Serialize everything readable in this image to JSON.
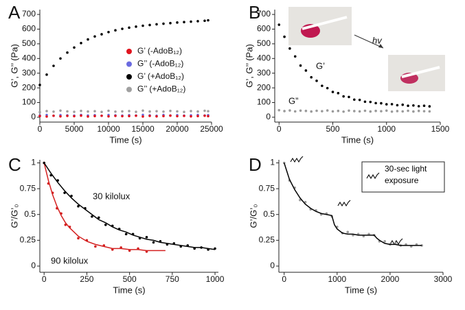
{
  "chart_data": [
    {
      "panel": "A",
      "type": "scatter",
      "xlabel": "Time (s)",
      "ylabel": "G’, G’’ (Pa)",
      "xlim": [
        0,
        25000
      ],
      "ylim": [
        -33,
        733
      ],
      "xticks": [
        0,
        5000,
        10000,
        15000,
        20000,
        25000
      ],
      "yticks": [
        0,
        100,
        200,
        300,
        400,
        500,
        600,
        700
      ],
      "x": [
        0,
        1000,
        2000,
        3000,
        4000,
        5000,
        6000,
        7000,
        8000,
        9000,
        10000,
        11000,
        12000,
        13000,
        14000,
        15000,
        16000,
        17000,
        18000,
        19000,
        20000,
        21000,
        22000,
        23000,
        24000,
        24500
      ],
      "series": [
        {
          "name": "G’ (-AdoB₁₂)",
          "color": "#e0141e",
          "values": [
            8,
            5,
            10,
            6,
            9,
            7,
            11,
            5,
            8,
            10,
            6,
            9,
            7,
            8,
            10,
            5,
            9,
            6,
            8,
            11,
            7,
            9,
            6,
            8,
            10,
            7
          ]
        },
        {
          "name": "G’’ (-AdoB₁₂)",
          "color": "#6a6ae0",
          "values": [
            12,
            15,
            10,
            14,
            13,
            11,
            16,
            12,
            14,
            10,
            15,
            13,
            11,
            14,
            12,
            16,
            13,
            10,
            15,
            12,
            14,
            11,
            13,
            15,
            12,
            14
          ]
        },
        {
          "name": "G’ (+AdoB₁₂)",
          "color": "#000000",
          "values": [
            220,
            290,
            350,
            400,
            440,
            475,
            505,
            530,
            550,
            565,
            580,
            592,
            602,
            610,
            617,
            623,
            628,
            633,
            637,
            641,
            645,
            648,
            651,
            654,
            657,
            660
          ]
        },
        {
          "name": "G’’ (+AdoB₁₂)",
          "color": "#a0a0a0",
          "values": [
            35,
            42,
            38,
            45,
            40,
            37,
            43,
            39,
            41,
            36,
            44,
            38,
            40,
            42,
            37,
            45,
            39,
            41,
            38,
            43,
            40,
            36,
            42,
            39,
            44,
            41
          ]
        }
      ]
    },
    {
      "panel": "B",
      "type": "scatter",
      "xlabel": "Time (s)",
      "ylabel": "G’, G’’ (Pa)",
      "annotation": "hv",
      "xlim": [
        -40,
        1500
      ],
      "ylim": [
        -33,
        733
      ],
      "xticks": [
        0,
        500,
        1000,
        1500
      ],
      "yticks": [
        0,
        100,
        200,
        300,
        400,
        500,
        600,
        700
      ],
      "x": [
        0,
        50,
        100,
        150,
        200,
        250,
        300,
        350,
        400,
        450,
        500,
        550,
        600,
        650,
        700,
        750,
        800,
        850,
        900,
        950,
        1000,
        1050,
        1100,
        1150,
        1200,
        1250,
        1300,
        1350,
        1400
      ],
      "series": [
        {
          "name": "G’",
          "color": "#000000",
          "values": [
            630,
            548,
            468,
            414,
            352,
            318,
            272,
            248,
            214,
            198,
            172,
            164,
            142,
            138,
            120,
            118,
            106,
            104,
            96,
            95,
            88,
            89,
            82,
            85,
            78,
            80,
            75,
            78,
            74
          ]
        },
        {
          "name": "G”",
          "color": "#9a9a9a",
          "values": [
            48,
            42,
            46,
            40,
            45,
            43,
            39,
            44,
            41,
            46,
            40,
            43,
            38,
            45,
            42,
            40,
            44,
            39,
            43,
            41,
            45,
            38,
            42,
            40,
            44,
            39,
            43,
            41,
            40
          ]
        }
      ]
    },
    {
      "panel": "C",
      "type": "scatter",
      "xlabel": "Time (s)",
      "ylabel": "G’/G’₀",
      "xlim": [
        -25,
        1020
      ],
      "ylim": [
        -0.06,
        1.03
      ],
      "xticks": [
        0,
        250,
        500,
        750,
        1000
      ],
      "yticks": [
        0,
        0.25,
        0.5,
        0.75,
        1
      ],
      "series": [
        {
          "name": "30 kilolux",
          "color": "#000000",
          "x": [
            0,
            40,
            80,
            120,
            160,
            200,
            240,
            280,
            320,
            360,
            400,
            440,
            480,
            520,
            560,
            600,
            640,
            680,
            720,
            760,
            800,
            840,
            880,
            920,
            960,
            1000
          ],
          "values": [
            1.0,
            0.88,
            0.83,
            0.71,
            0.68,
            0.58,
            0.56,
            0.48,
            0.47,
            0.4,
            0.39,
            0.36,
            0.31,
            0.31,
            0.27,
            0.28,
            0.23,
            0.24,
            0.21,
            0.22,
            0.19,
            0.2,
            0.17,
            0.18,
            0.16,
            0.17
          ],
          "fit_x": [
            0,
            40,
            80,
            120,
            160,
            200,
            240,
            280,
            320,
            360,
            400,
            440,
            480,
            520,
            560,
            600,
            640,
            680,
            720,
            760,
            800,
            840,
            880,
            920,
            960,
            1000
          ],
          "fit_values": [
            1.0,
            0.9,
            0.81,
            0.73,
            0.66,
            0.6,
            0.55,
            0.5,
            0.45,
            0.42,
            0.38,
            0.35,
            0.33,
            0.3,
            0.28,
            0.26,
            0.25,
            0.23,
            0.22,
            0.21,
            0.2,
            0.19,
            0.18,
            0.18,
            0.17,
            0.16
          ]
        },
        {
          "name": "90 kilolux",
          "color": "#d42020",
          "x": [
            0,
            25,
            50,
            75,
            100,
            125,
            150,
            200,
            250,
            300,
            350,
            400,
            450,
            500,
            550,
            600
          ],
          "values": [
            1.0,
            0.8,
            0.71,
            0.56,
            0.51,
            0.4,
            0.38,
            0.27,
            0.25,
            0.19,
            0.2,
            0.16,
            0.18,
            0.15,
            0.17,
            0.14
          ],
          "fit_x": [
            0,
            25,
            50,
            75,
            100,
            125,
            150,
            200,
            250,
            300,
            350,
            400,
            450,
            500,
            550,
            600,
            650,
            710
          ],
          "fit_values": [
            1.0,
            0.83,
            0.69,
            0.58,
            0.49,
            0.42,
            0.37,
            0.29,
            0.24,
            0.21,
            0.19,
            0.17,
            0.17,
            0.16,
            0.16,
            0.15,
            0.15,
            0.15
          ]
        }
      ]
    },
    {
      "panel": "D",
      "type": "scatter",
      "xlabel": "Time (s)",
      "ylabel": "G’/G’₀",
      "legend_label": "30-sec light exposure",
      "xlim": [
        -100,
        3000
      ],
      "ylim": [
        -0.06,
        1.03
      ],
      "xticks": [
        0,
        1000,
        2000,
        3000
      ],
      "yticks": [
        0,
        0.25,
        0.5,
        0.75,
        1
      ],
      "series": [
        {
          "color": "#9a9a9a",
          "fit_color": "#000000",
          "x": [
            0,
            100,
            200,
            300,
            400,
            500,
            600,
            700,
            800,
            900,
            1000,
            1100,
            1200,
            1300,
            1400,
            1500,
            1600,
            1700,
            1800,
            1900,
            2000,
            2100,
            2200,
            2300,
            2400,
            2500,
            2600
          ],
          "values": [
            1.0,
            0.83,
            0.76,
            0.64,
            0.62,
            0.55,
            0.54,
            0.5,
            0.51,
            0.48,
            0.38,
            0.32,
            0.33,
            0.3,
            0.31,
            0.29,
            0.31,
            0.3,
            0.24,
            0.24,
            0.21,
            0.22,
            0.2,
            0.21,
            0.19,
            0.21,
            0.2
          ],
          "fit_x": [
            0,
            100,
            200,
            300,
            400,
            500,
            600,
            700,
            800,
            900,
            950,
            1000,
            1100,
            1200,
            1300,
            1400,
            1500,
            1600,
            1700,
            1750,
            1800,
            1900,
            2000,
            2100,
            2200,
            2300,
            2400,
            2500,
            2600
          ],
          "fit_values": [
            1.0,
            0.84,
            0.74,
            0.66,
            0.6,
            0.56,
            0.53,
            0.51,
            0.5,
            0.49,
            0.4,
            0.36,
            0.32,
            0.31,
            0.31,
            0.3,
            0.3,
            0.3,
            0.3,
            0.27,
            0.25,
            0.22,
            0.21,
            0.21,
            0.2,
            0.2,
            0.2,
            0.2,
            0.2
          ]
        }
      ]
    }
  ]
}
